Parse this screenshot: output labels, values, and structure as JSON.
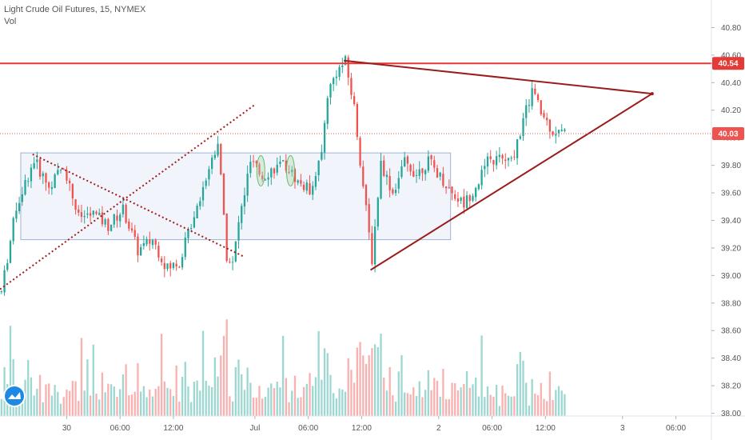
{
  "legend": {
    "title": "Light Crude Oil Futures, 15, NYMEX",
    "indicator": "Vol"
  },
  "colors": {
    "up": "#26a69a",
    "down": "#ef5350",
    "resistance": "#e53935",
    "trendline": "#9b1c1c",
    "dotted": "#a11c1c",
    "range_box": "#dfe8f6",
    "price_tag": "#ef5350",
    "resistance_tag": "#e53935",
    "highlight": "#a5d6a7",
    "logo": "#1e88e5"
  },
  "logo_icon": "tradingview-icon",
  "chart_data": {
    "type": "candlestick",
    "title": "Light Crude Oil Futures, 15, NYMEX",
    "indicator": "Vol",
    "ylim": [
      37.98,
      41.0
    ],
    "y_ticks": [
      "40.80",
      "40.60",
      "40.40",
      "40.20",
      "40.00",
      "39.80",
      "39.60",
      "39.40",
      "39.20",
      "39.00",
      "38.80",
      "38.60",
      "38.40",
      "38.20",
      "38.00"
    ],
    "x_ticks": [
      "30",
      "06:00",
      "12:00",
      "Jul",
      "06:00",
      "12:00",
      "2",
      "06:00",
      "12:00",
      "3",
      "06:00"
    ],
    "x_tick_pos": [
      22.5,
      40.5,
      58.5,
      86,
      104,
      122,
      148,
      166,
      184,
      210,
      228
    ],
    "bar_range": [
      0,
      190
    ],
    "x_max": 240,
    "last_price": 40.03,
    "last_price_label": "40.03",
    "resistance_level": 40.54,
    "resistance_label": "40.54",
    "anchors": [
      [
        0,
        38.88
      ],
      [
        5,
        39.5
      ],
      [
        11,
        39.84
      ],
      [
        16,
        39.64
      ],
      [
        21,
        39.8
      ],
      [
        26,
        39.42
      ],
      [
        31,
        39.45
      ],
      [
        36,
        39.36
      ],
      [
        41,
        39.48
      ],
      [
        46,
        39.18
      ],
      [
        51,
        39.26
      ],
      [
        56,
        39.05
      ],
      [
        60,
        39.1
      ],
      [
        65,
        39.45
      ],
      [
        70,
        39.78
      ],
      [
        73,
        39.98
      ],
      [
        76,
        39.15
      ],
      [
        78,
        39.08
      ],
      [
        80,
        39.38
      ],
      [
        84,
        39.82
      ],
      [
        88,
        39.72
      ],
      [
        92,
        39.78
      ],
      [
        96,
        39.8
      ],
      [
        100,
        39.68
      ],
      [
        104,
        39.62
      ],
      [
        108,
        39.88
      ],
      [
        110,
        40.32
      ],
      [
        113,
        40.48
      ],
      [
        116,
        40.55
      ],
      [
        119,
        40.22
      ],
      [
        122,
        39.65
      ],
      [
        125,
        39.12
      ],
      [
        128,
        39.82
      ],
      [
        132,
        39.6
      ],
      [
        136,
        39.82
      ],
      [
        140,
        39.74
      ],
      [
        144,
        39.83
      ],
      [
        148,
        39.72
      ],
      [
        152,
        39.6
      ],
      [
        156,
        39.52
      ],
      [
        160,
        39.65
      ],
      [
        164,
        39.82
      ],
      [
        168,
        39.85
      ],
      [
        172,
        39.82
      ],
      [
        176,
        40.12
      ],
      [
        179,
        40.35
      ],
      [
        182,
        40.18
      ],
      [
        186,
        40.05
      ],
      [
        190,
        40.03
      ]
    ],
    "volume_ylim": [
      0,
      55
    ],
    "annotations": {
      "resistance_line": {
        "from": [
          -2,
          40.54
        ],
        "to": [
          242,
          40.54
        ]
      },
      "triangle_upper": [
        [
          116,
          40.56
        ],
        [
          220,
          40.32
        ]
      ],
      "triangle_lower": [
        [
          125,
          39.04
        ],
        [
          220,
          40.32
        ]
      ],
      "dotted_down": [
        [
          11,
          39.88
        ],
        [
          82,
          39.14
        ]
      ],
      "dotted_up": [
        [
          0,
          38.9
        ],
        [
          86,
          40.24
        ]
      ],
      "range_box": {
        "x0": 7,
        "x1": 152,
        "y0": 39.26,
        "y1": 39.89
      },
      "highlight_ellipses": [
        [
          88,
          39.76
        ],
        [
          98,
          39.76
        ]
      ]
    }
  }
}
